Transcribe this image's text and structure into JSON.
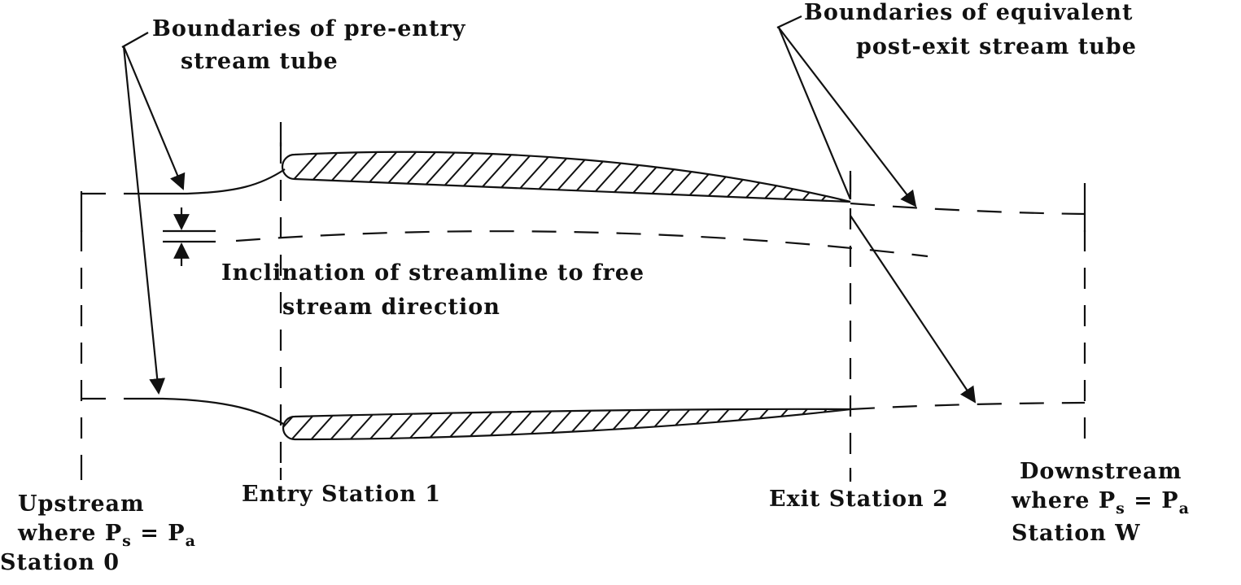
{
  "labels": {
    "pre_entry_1": "Boundaries of pre-entry",
    "pre_entry_2": "stream tube",
    "post_exit_1": "Boundaries of equivalent",
    "post_exit_2": "post-exit stream tube",
    "inclination_1": "Inclination of streamline to free",
    "inclination_2": "stream direction",
    "entry_station": "Entry Station 1",
    "exit_station": "Exit Station 2",
    "upstream_1": "Upstream",
    "upstream_2_prefix": "where P",
    "upstream_2_sub_s": "s",
    "upstream_2_eq": " = P",
    "upstream_2_sub_a": "a",
    "upstream_3": "Station 0",
    "downstream_1": "Downstream",
    "downstream_2_prefix": "where P",
    "downstream_2_sub_s": "s",
    "downstream_2_eq": " = P",
    "downstream_2_sub_a": "a",
    "downstream_3": "Station W"
  }
}
